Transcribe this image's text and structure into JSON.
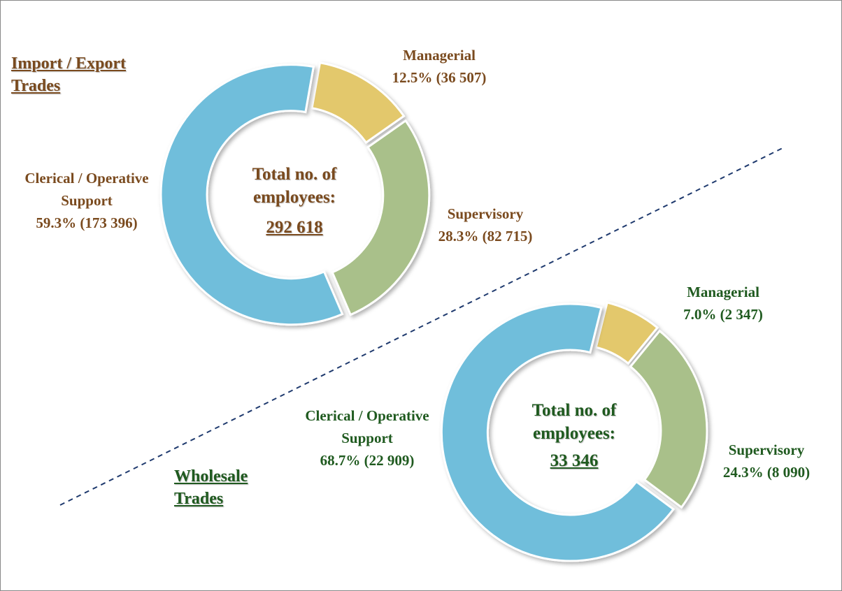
{
  "chart_data": [
    {
      "type": "pie",
      "title": "Import / Export Trades",
      "center_text": "Total no. of employees:",
      "total": {
        "value": 292618,
        "label": "292 618"
      },
      "categories": [
        "Managerial",
        "Supervisory",
        "Clerical / Operative Support"
      ],
      "values": [
        12.5,
        28.3,
        59.3
      ],
      "value_labels": [
        "12.5% (36 507)",
        "28.3% (82 715)",
        "59.3% (173 396)"
      ],
      "colors": [
        "#e3c86c",
        "#a9c08a",
        "#6fbedb"
      ],
      "text_color": "#7a4a1e"
    },
    {
      "type": "pie",
      "title": "Wholesale Trades",
      "center_text": "Total no. of employees:",
      "total": {
        "value": 33346,
        "label": "33 346"
      },
      "categories": [
        "Managerial",
        "Supervisory",
        "Clerical / Operative Support"
      ],
      "values": [
        7.0,
        24.3,
        68.7
      ],
      "value_labels": [
        "7.0% (2 347)",
        "24.3% (8 090)",
        "68.7% (22 909)"
      ],
      "colors": [
        "#e3c86c",
        "#a9c08a",
        "#6fbedb"
      ],
      "text_color": "#1f5a1f"
    }
  ]
}
